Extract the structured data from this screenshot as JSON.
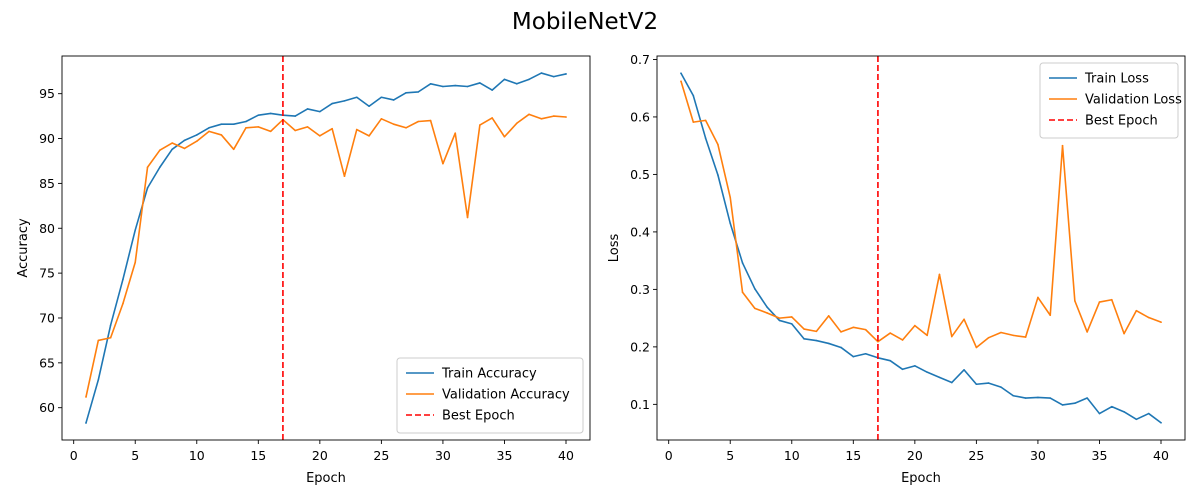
{
  "figure": {
    "suptitle": "MobileNetV2"
  },
  "chart_data": [
    {
      "type": "line",
      "xlabel": "Epoch",
      "ylabel": "Accuracy",
      "xlim": [
        -0.95,
        41.95
      ],
      "ylim": [
        56.4,
        99.2
      ],
      "xticks": [
        0,
        5,
        10,
        15,
        20,
        25,
        30,
        35,
        40
      ],
      "yticks": [
        60,
        65,
        70,
        75,
        80,
        85,
        90,
        95
      ],
      "legend_loc": "lower-right",
      "x": [
        1,
        2,
        3,
        4,
        5,
        6,
        7,
        8,
        9,
        10,
        11,
        12,
        13,
        14,
        15,
        16,
        17,
        18,
        19,
        20,
        21,
        22,
        23,
        24,
        25,
        26,
        27,
        28,
        29,
        30,
        31,
        32,
        33,
        34,
        35,
        36,
        37,
        38,
        39,
        40
      ],
      "series": [
        {
          "name": "Train Accuracy",
          "color": "#1f77b4",
          "values": [
            58.3,
            63.1,
            69.2,
            74.3,
            79.8,
            84.5,
            86.8,
            88.8,
            89.8,
            90.4,
            91.2,
            91.6,
            91.6,
            91.9,
            92.6,
            92.8,
            92.6,
            92.5,
            93.3,
            93.0,
            93.9,
            94.2,
            94.6,
            93.6,
            94.6,
            94.3,
            95.1,
            95.2,
            96.1,
            95.8,
            95.9,
            95.8,
            96.2,
            95.4,
            96.6,
            96.1,
            96.6,
            97.3,
            96.9,
            97.2
          ]
        },
        {
          "name": "Validation Accuracy",
          "color": "#ff7f0e",
          "values": [
            61.2,
            67.5,
            67.8,
            71.6,
            76.2,
            86.8,
            88.7,
            89.5,
            88.9,
            89.7,
            90.8,
            90.4,
            88.8,
            91.2,
            91.3,
            90.8,
            92.1,
            90.9,
            91.3,
            90.3,
            91.1,
            85.8,
            91.0,
            90.3,
            92.2,
            91.6,
            91.2,
            91.9,
            92.0,
            87.2,
            90.6,
            81.2,
            91.5,
            92.3,
            90.2,
            91.7,
            92.7,
            92.2,
            92.5,
            92.4
          ]
        }
      ],
      "reference_line": {
        "name": "Best Epoch",
        "x": 17,
        "color": "#ff0000"
      }
    },
    {
      "type": "line",
      "xlabel": "Epoch",
      "ylabel": "Loss",
      "xlim": [
        -0.95,
        41.95
      ],
      "ylim": [
        0.038,
        0.706
      ],
      "xticks": [
        0,
        5,
        10,
        15,
        20,
        25,
        30,
        35,
        40
      ],
      "yticks": [
        0.1,
        0.2,
        0.3,
        0.4,
        0.5,
        0.6,
        0.7
      ],
      "legend_loc": "upper-right",
      "x": [
        1,
        2,
        3,
        4,
        5,
        6,
        7,
        8,
        9,
        10,
        11,
        12,
        13,
        14,
        15,
        16,
        17,
        18,
        19,
        20,
        21,
        22,
        23,
        24,
        25,
        26,
        27,
        28,
        29,
        30,
        31,
        32,
        33,
        34,
        35,
        36,
        37,
        38,
        39,
        40
      ],
      "series": [
        {
          "name": "Train Loss",
          "color": "#1f77b4",
          "values": [
            0.676,
            0.637,
            0.563,
            0.499,
            0.415,
            0.346,
            0.301,
            0.269,
            0.246,
            0.24,
            0.214,
            0.211,
            0.206,
            0.199,
            0.183,
            0.188,
            0.181,
            0.176,
            0.161,
            0.167,
            0.156,
            0.147,
            0.138,
            0.16,
            0.135,
            0.137,
            0.13,
            0.115,
            0.111,
            0.112,
            0.111,
            0.099,
            0.102,
            0.111,
            0.084,
            0.096,
            0.087,
            0.074,
            0.084,
            0.068
          ]
        },
        {
          "name": "Validation Loss",
          "color": "#ff7f0e",
          "values": [
            0.662,
            0.591,
            0.594,
            0.552,
            0.46,
            0.295,
            0.267,
            0.259,
            0.25,
            0.252,
            0.231,
            0.227,
            0.254,
            0.226,
            0.234,
            0.23,
            0.209,
            0.224,
            0.212,
            0.237,
            0.22,
            0.326,
            0.218,
            0.248,
            0.199,
            0.216,
            0.225,
            0.22,
            0.217,
            0.286,
            0.255,
            0.55,
            0.28,
            0.226,
            0.278,
            0.282,
            0.223,
            0.263,
            0.251,
            0.243
          ]
        }
      ],
      "reference_line": {
        "name": "Best Epoch",
        "x": 17,
        "color": "#ff0000"
      }
    }
  ]
}
